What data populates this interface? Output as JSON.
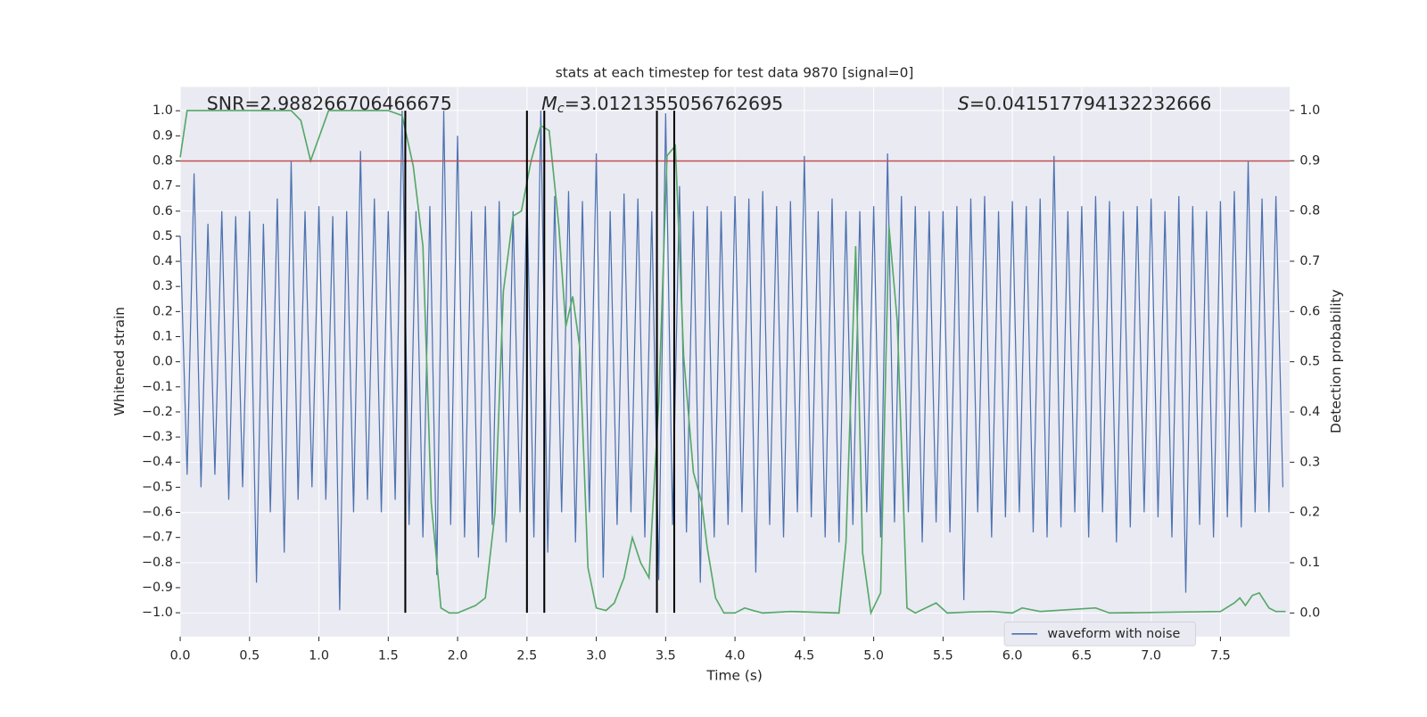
{
  "chart_data": {
    "type": "line",
    "title": "stats at each timestep for test data 9870 [signal=0]",
    "xlabel": "Time (s)",
    "ylabel": "Whitened strain",
    "y2label": "Detection probability",
    "annotations": [
      {
        "text": "SNR=2.988266706466675"
      },
      {
        "symbol": "M",
        "subscript": "c",
        "text": "=3.0121355056762695"
      },
      {
        "symbol": "S",
        "text": "=0.041517794132232666"
      }
    ],
    "xlim": [
      0,
      8.0
    ],
    "ylim": [
      -1.095,
      1.095
    ],
    "y2lim": [
      -0.047,
      1.047
    ],
    "grid": true,
    "legend": "lower right",
    "xticks": [
      {
        "value": 0,
        "label": "0.0"
      },
      {
        "value": 0.5,
        "label": "0.5"
      },
      {
        "value": 1,
        "label": "1.0"
      },
      {
        "value": 1.5,
        "label": "1.5"
      },
      {
        "value": 2,
        "label": "2.0"
      },
      {
        "value": 2.5,
        "label": "2.5"
      },
      {
        "value": 3,
        "label": "3.0"
      },
      {
        "value": 3.5,
        "label": "3.5"
      },
      {
        "value": 4,
        "label": "4.0"
      },
      {
        "value": 4.5,
        "label": "4.5"
      },
      {
        "value": 5,
        "label": "5.0"
      },
      {
        "value": 5.5,
        "label": "5.5"
      },
      {
        "value": 6,
        "label": "6.0"
      },
      {
        "value": 6.5,
        "label": "6.5"
      },
      {
        "value": 7,
        "label": "7.0"
      },
      {
        "value": 7.5,
        "label": "7.5"
      }
    ],
    "yticks": [
      {
        "value": 1,
        "label": "1.0"
      },
      {
        "value": 0.9,
        "label": "0.9"
      },
      {
        "value": 0.8,
        "label": "0.8"
      },
      {
        "value": 0.7,
        "label": "0.7"
      },
      {
        "value": 0.6,
        "label": "0.6"
      },
      {
        "value": 0.5,
        "label": "0.5"
      },
      {
        "value": 0.4,
        "label": "0.4"
      },
      {
        "value": 0.3,
        "label": "0.3"
      },
      {
        "value": 0.2,
        "label": "0.2"
      },
      {
        "value": 0.1,
        "label": "0.1"
      },
      {
        "value": 0,
        "label": "0.0"
      },
      {
        "value": -0.1,
        "label": "−0.1"
      },
      {
        "value": -0.2,
        "label": "−0.2"
      },
      {
        "value": -0.3,
        "label": "−0.3"
      },
      {
        "value": -0.4,
        "label": "−0.4"
      },
      {
        "value": -0.5,
        "label": "−0.5"
      },
      {
        "value": -0.6,
        "label": "−0.6"
      },
      {
        "value": -0.7,
        "label": "−0.7"
      },
      {
        "value": -0.8,
        "label": "−0.8"
      },
      {
        "value": -0.9,
        "label": "−0.9"
      },
      {
        "value": -1,
        "label": "−1.0"
      }
    ],
    "y2ticks": [
      {
        "value": 1,
        "label": "1.0"
      },
      {
        "value": 0.9,
        "label": "0.9"
      },
      {
        "value": 0.8,
        "label": "0.8"
      },
      {
        "value": 0.7,
        "label": "0.7"
      },
      {
        "value": 0.6,
        "label": "0.6"
      },
      {
        "value": 0.5,
        "label": "0.5"
      },
      {
        "value": 0.4,
        "label": "0.4"
      },
      {
        "value": 0.3,
        "label": "0.3"
      },
      {
        "value": 0.2,
        "label": "0.2"
      },
      {
        "value": 0.1,
        "label": "0.1"
      },
      {
        "value": 0,
        "label": "0.0"
      }
    ],
    "hlines": [
      {
        "value": 0.8,
        "color": "#c44e52"
      }
    ],
    "vlines": {
      "color": "#000000",
      "ymin": -1,
      "ymax": 1,
      "x": [
        1.623,
        2.5,
        2.625,
        3.437,
        3.562
      ]
    },
    "series": [
      {
        "name": "waveform with noise",
        "color": "#4c72b0",
        "x": [
          0,
          0.05,
          0.1,
          0.15,
          0.2,
          0.25,
          0.3,
          0.35,
          0.4,
          0.45,
          0.5,
          0.55,
          0.6,
          0.65,
          0.7,
          0.75,
          0.8,
          0.85,
          0.9,
          0.95,
          1,
          1.05,
          1.1,
          1.15,
          1.2,
          1.25,
          1.3,
          1.35,
          1.4,
          1.45,
          1.5,
          1.55,
          1.6,
          1.65,
          1.7,
          1.75,
          1.8,
          1.85,
          1.9,
          1.95,
          2,
          2.05,
          2.1,
          2.15,
          2.2,
          2.25,
          2.3,
          2.35,
          2.4,
          2.45,
          2.5,
          2.55,
          2.6,
          2.65,
          2.7,
          2.75,
          2.8,
          2.85,
          2.9,
          2.95,
          3,
          3.05,
          3.1,
          3.15,
          3.2,
          3.25,
          3.3,
          3.35,
          3.4,
          3.45,
          3.5,
          3.55,
          3.6,
          3.65,
          3.7,
          3.75,
          3.8,
          3.85,
          3.9,
          3.95,
          4,
          4.05,
          4.1,
          4.15,
          4.2,
          4.25,
          4.3,
          4.35,
          4.4,
          4.45,
          4.5,
          4.55,
          4.6,
          4.65,
          4.7,
          4.75,
          4.8,
          4.85,
          4.9,
          4.95,
          5,
          5.05,
          5.1,
          5.15,
          5.2,
          5.25,
          5.3,
          5.35,
          5.4,
          5.45,
          5.5,
          5.55,
          5.6,
          5.65,
          5.7,
          5.75,
          5.8,
          5.85,
          5.9,
          5.95,
          6,
          6.05,
          6.1,
          6.15,
          6.2,
          6.25,
          6.3,
          6.35,
          6.4,
          6.45,
          6.5,
          6.55,
          6.6,
          6.65,
          6.7,
          6.75,
          6.8,
          6.85,
          6.9,
          6.95,
          7,
          7.05,
          7.1,
          7.15,
          7.2,
          7.25,
          7.3,
          7.35,
          7.4,
          7.45,
          7.5,
          7.55,
          7.6,
          7.65,
          7.7,
          7.75,
          7.8,
          7.85,
          7.9,
          7.95
        ],
        "values": [
          0.5,
          -0.45,
          0.75,
          -0.5,
          0.55,
          -0.45,
          0.6,
          -0.55,
          0.58,
          -0.5,
          0.6,
          -0.88,
          0.55,
          -0.6,
          0.65,
          -0.76,
          0.8,
          -0.55,
          0.6,
          -0.5,
          0.62,
          -0.55,
          0.58,
          -0.99,
          0.6,
          -0.6,
          0.84,
          -0.55,
          0.65,
          -0.6,
          0.6,
          -0.55,
          1.0,
          -0.65,
          0.6,
          -0.7,
          0.62,
          -0.85,
          1.0,
          -0.65,
          0.9,
          -0.7,
          0.6,
          -0.78,
          0.62,
          -0.65,
          0.64,
          -0.72,
          0.6,
          -0.6,
          0.68,
          -0.7,
          1.0,
          -0.76,
          0.66,
          -0.6,
          0.68,
          -0.72,
          0.64,
          -0.6,
          0.83,
          -0.86,
          0.6,
          -0.65,
          0.67,
          -0.6,
          0.65,
          -0.7,
          0.6,
          -0.87,
          0.99,
          -0.65,
          0.7,
          -0.68,
          0.6,
          -0.88,
          0.62,
          -0.7,
          0.6,
          -0.65,
          0.66,
          -0.6,
          0.65,
          -0.84,
          0.68,
          -0.65,
          0.62,
          -0.7,
          0.64,
          -0.6,
          0.82,
          -0.62,
          0.6,
          -0.7,
          0.65,
          -0.72,
          0.6,
          -0.65,
          0.6,
          -0.6,
          0.62,
          -0.7,
          0.83,
          -0.64,
          0.66,
          -0.6,
          0.62,
          -0.72,
          0.6,
          -0.64,
          0.6,
          -0.68,
          0.62,
          -0.95,
          0.65,
          -0.6,
          0.66,
          -0.7,
          0.6,
          -0.62,
          0.64,
          -0.6,
          0.62,
          -0.68,
          0.65,
          -0.7,
          0.82,
          -0.66,
          0.6,
          -0.6,
          0.62,
          -0.7,
          0.66,
          -0.6,
          0.64,
          -0.72,
          0.6,
          -0.66,
          0.62,
          -0.6,
          0.65,
          -0.62,
          0.6,
          -0.7,
          0.66,
          -0.92,
          0.62,
          -0.65,
          0.6,
          -0.7,
          0.64,
          -0.62,
          0.68,
          -0.66,
          0.8,
          -0.6,
          0.65,
          -0.6,
          0.66,
          -0.5
        ]
      },
      {
        "color": "#55a868",
        "axis": "y2",
        "x": [
          0,
          0.05,
          0.8,
          0.87,
          0.94,
          1.07,
          1.5,
          1.6,
          1.68,
          1.75,
          1.81,
          1.88,
          1.94,
          2.0,
          2.13,
          2.2,
          2.27,
          2.33,
          2.4,
          2.46,
          2.53,
          2.6,
          2.66,
          2.73,
          2.78,
          2.83,
          2.88,
          2.94,
          3.0,
          3.07,
          3.13,
          3.2,
          3.26,
          3.32,
          3.38,
          3.45,
          3.51,
          3.57,
          3.63,
          3.7,
          3.76,
          3.8,
          3.86,
          3.92,
          4.0,
          4.07,
          4.13,
          4.2,
          4.4,
          4.75,
          4.8,
          4.87,
          4.92,
          4.98,
          5.05,
          5.11,
          5.17,
          5.24,
          5.3,
          5.45,
          5.53,
          5.7,
          5.85,
          6.0,
          6.07,
          6.2,
          6.6,
          6.7,
          7.5,
          7.6,
          7.64,
          7.68,
          7.73,
          7.78,
          7.85,
          7.9,
          7.97
        ],
        "values": [
          0.907,
          1.0,
          1.0,
          0.98,
          0.9,
          1.0,
          1.0,
          0.99,
          0.89,
          0.73,
          0.22,
          0.01,
          0.0,
          0.0,
          0.015,
          0.03,
          0.2,
          0.64,
          0.79,
          0.8,
          0.9,
          0.97,
          0.96,
          0.77,
          0.57,
          0.63,
          0.53,
          0.09,
          0.01,
          0.005,
          0.02,
          0.07,
          0.15,
          0.1,
          0.07,
          0.42,
          0.91,
          0.93,
          0.51,
          0.28,
          0.22,
          0.13,
          0.03,
          0.0,
          0.0,
          0.01,
          0.005,
          0.0,
          0.003,
          0.0,
          0.14,
          0.73,
          0.12,
          0.0,
          0.04,
          0.77,
          0.58,
          0.01,
          0.0,
          0.02,
          0.0,
          0.002,
          0.003,
          0.0,
          0.01,
          0.003,
          0.01,
          0.0,
          0.003,
          0.02,
          0.03,
          0.015,
          0.035,
          0.04,
          0.01,
          0.003,
          0.003
        ]
      }
    ]
  }
}
